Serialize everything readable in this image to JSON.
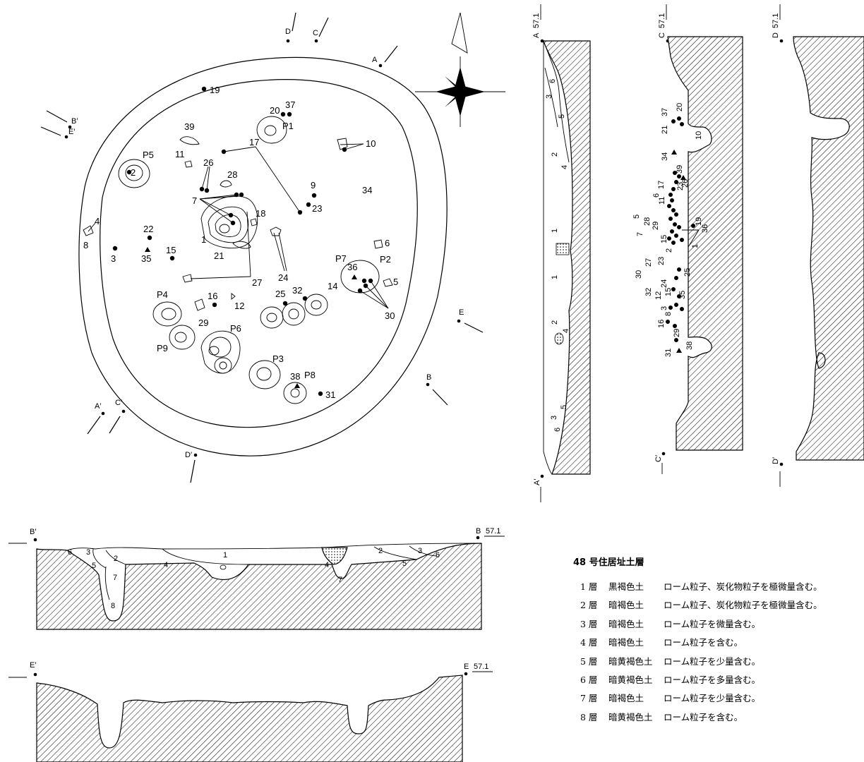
{
  "legend": {
    "title": "48 号住居址土層",
    "layers": [
      {
        "num": "1 層",
        "soil": "黒褐色土",
        "desc": "ローム粒子、炭化物粒子を極微量含む。"
      },
      {
        "num": "2 層",
        "soil": "暗褐色土",
        "desc": "ローム粒子、炭化物粒子を極微量含む。"
      },
      {
        "num": "3 層",
        "soil": "暗褐色土",
        "desc": "ローム粒子を微量含む。"
      },
      {
        "num": "4 層",
        "soil": "暗褐色土",
        "desc": "ローム粒子を含む。"
      },
      {
        "num": "5 層",
        "soil": "暗黄褐色土",
        "desc": "ローム粒子を少量含む。"
      },
      {
        "num": "6 層",
        "soil": "暗黄褐色土",
        "desc": "ローム粒子を多量含む。"
      },
      {
        "num": "7 層",
        "soil": "暗褐色土",
        "desc": "ローム粒子を少量含む。"
      },
      {
        "num": "8 層",
        "soil": "暗黄褐色土",
        "desc": "ローム粒子を含む。"
      }
    ]
  },
  "elevation": "57.1",
  "sections": {
    "A": "A",
    "A_prime": "A′",
    "B": "B",
    "B_prime": "B′",
    "C": "C",
    "C_prime": "C′",
    "D": "D",
    "D_prime": "D′",
    "E": "E",
    "E_prime": "E′"
  },
  "pits": [
    "P1",
    "P2",
    "P3",
    "P4",
    "P5",
    "P6",
    "P7",
    "P8",
    "P9"
  ],
  "finds": [
    "1",
    "2",
    "3",
    "4",
    "5",
    "6",
    "7",
    "8",
    "9",
    "10",
    "11",
    "12",
    "14",
    "15",
    "16",
    "17",
    "18",
    "19",
    "20",
    "21",
    "22",
    "23",
    "24",
    "25",
    "26",
    "27",
    "28",
    "29",
    "30",
    "31",
    "32",
    "34",
    "35",
    "36",
    "37",
    "38",
    "39"
  ],
  "section_layer_numbers": [
    "1",
    "2",
    "3",
    "4",
    "5",
    "6",
    "7",
    "8"
  ]
}
